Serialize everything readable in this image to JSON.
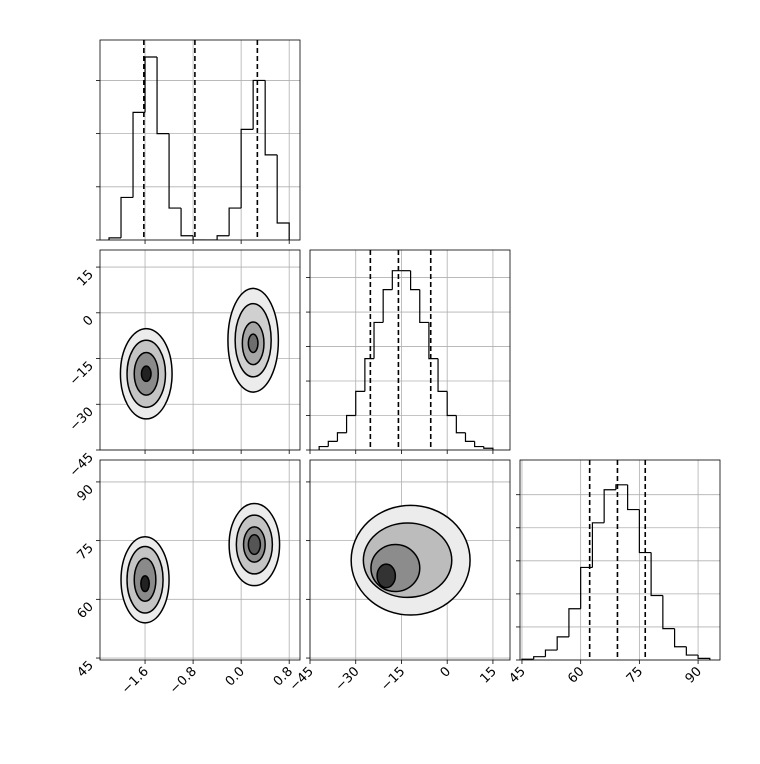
{
  "chart_data": [
    {
      "type": "histogram",
      "bins": [
        -2.2,
        -2.0,
        -1.8,
        -1.6,
        -1.4,
        -1.2,
        -1.0,
        -0.8,
        -0.6,
        -0.4,
        -0.2,
        0,
        0.2,
        0.4,
        0.6,
        0.8
      ],
      "values": [
        0.01,
        0.2,
        0.6,
        0.86,
        0.5,
        0.15,
        0.02,
        0,
        0,
        0.02,
        0.15,
        0.52,
        0.75,
        0.4,
        0.08
      ],
      "quantiles": [
        -1.62,
        -0.77,
        0.27
      ],
      "xlim": [
        -2.35,
        0.98
      ],
      "ylim": [
        0,
        0.94
      ],
      "xticks": [
        -1.6,
        -0.8,
        0,
        0.8
      ],
      "yticks": [
        0,
        0.25,
        0.5,
        0.75
      ],
      "grid": true,
      "color": "#000000",
      "xtick_labels": false,
      "ytick_labels": false
    },
    {
      "type": "contour",
      "xlim": [
        -2.35,
        0.98
      ],
      "ylim": [
        -45,
        20.6
      ],
      "xticks": [
        -1.6,
        -0.8,
        0,
        0.8
      ],
      "yticks": [
        15,
        0,
        {
          "value": -15,
          "label": "−15"
        },
        {
          "value": -30,
          "label": "−30"
        },
        {
          "value": -45,
          "label": "−45"
        }
      ],
      "grid": true,
      "xtick_labels": false,
      "ytick_labels": true,
      "contours": [
        {
          "cx": -1.58,
          "cy": -20,
          "rx": 0.43,
          "ry": 14.8,
          "fill": "#ececec"
        },
        {
          "cx": -1.58,
          "cy": -20,
          "rx": 0.32,
          "ry": 11,
          "fill": "#c4c4c4"
        },
        {
          "cx": -1.58,
          "cy": -20,
          "rx": 0.2,
          "ry": 7,
          "fill": "#8a8a8a"
        },
        {
          "cx": -1.58,
          "cy": -20,
          "rx": 0.08,
          "ry": 2.5,
          "fill": "#222222"
        },
        {
          "cx": 0.2,
          "cy": -9,
          "rx": 0.42,
          "ry": 17,
          "fill": "#ececec"
        },
        {
          "cx": 0.2,
          "cy": -9,
          "rx": 0.3,
          "ry": 12,
          "fill": "#d0d0d0"
        },
        {
          "cx": 0.2,
          "cy": -10,
          "rx": 0.18,
          "ry": 7,
          "fill": "#a6a6a6"
        },
        {
          "cx": 0.2,
          "cy": -10,
          "rx": 0.08,
          "ry": 3,
          "fill": "#6e6e6e"
        }
      ]
    },
    {
      "type": "histogram",
      "bins": [
        -42,
        -39,
        -36,
        -33,
        -30,
        -27,
        -24,
        -21,
        -18,
        -15,
        -12,
        -9,
        -6,
        -3,
        0,
        3,
        6,
        9,
        12,
        15
      ],
      "values": [
        0.02,
        0.05,
        0.1,
        0.2,
        0.34,
        0.53,
        0.74,
        0.93,
        1.04,
        1.04,
        0.93,
        0.74,
        0.53,
        0.34,
        0.2,
        0.1,
        0.05,
        0.02,
        0.01
      ],
      "quantiles": [
        -25.2,
        -16,
        -5.4
      ],
      "xlim": [
        -45,
        20.6
      ],
      "ylim": [
        0,
        1.16
      ],
      "xticks": [
        -45,
        -30,
        -15,
        0,
        15
      ],
      "yticks": [
        0,
        0.2,
        0.4,
        0.6,
        0.8,
        1.0
      ],
      "grid": true,
      "color": "#000000",
      "xtick_labels": false,
      "ytick_labels": false
    },
    {
      "type": "contour",
      "xlim": [
        -2.35,
        0.98
      ],
      "ylim": [
        44.5,
        95.6
      ],
      "xticks": [
        {
          "value": -1.6,
          "label": "−1.6"
        },
        {
          "value": -0.8,
          "label": "−0.8"
        },
        {
          "value": 0,
          "label": "0.0"
        },
        0.8
      ],
      "yticks": [
        45,
        60,
        75,
        90
      ],
      "grid": true,
      "xtick_labels": true,
      "ytick_labels": true,
      "contours": [
        {
          "cx": -1.6,
          "cy": 65,
          "rx": 0.4,
          "ry": 11,
          "fill": "#ececec"
        },
        {
          "cx": -1.6,
          "cy": 65,
          "rx": 0.3,
          "ry": 8.5,
          "fill": "#c4c4c4"
        },
        {
          "cx": -1.6,
          "cy": 65,
          "rx": 0.18,
          "ry": 5.5,
          "fill": "#8a8a8a"
        },
        {
          "cx": -1.6,
          "cy": 64,
          "rx": 0.07,
          "ry": 2,
          "fill": "#222222"
        },
        {
          "cx": 0.22,
          "cy": 74,
          "rx": 0.42,
          "ry": 10.5,
          "fill": "#ececec"
        },
        {
          "cx": 0.22,
          "cy": 74,
          "rx": 0.3,
          "ry": 7.5,
          "fill": "#c4c4c4"
        },
        {
          "cx": 0.22,
          "cy": 74,
          "rx": 0.18,
          "ry": 4.5,
          "fill": "#8a8a8a"
        },
        {
          "cx": 0.22,
          "cy": 74,
          "rx": 0.1,
          "ry": 2.5,
          "fill": "#555555"
        }
      ]
    },
    {
      "type": "contour",
      "xlim": [
        -45,
        20.6
      ],
      "ylim": [
        44.5,
        95.6
      ],
      "xticks": [
        {
          "value": -45,
          "label": "−45"
        },
        {
          "value": -30,
          "label": "−30"
        },
        {
          "value": -15,
          "label": "−15"
        },
        0,
        15
      ],
      "yticks": [
        45,
        60,
        75,
        90
      ],
      "grid": true,
      "xtick_labels": true,
      "ytick_labels": false,
      "contours": [
        {
          "cx": -12,
          "cy": 70,
          "rx": 19.5,
          "ry": 14,
          "fill": "#ececec"
        },
        {
          "cx": -13,
          "cy": 70,
          "rx": 14.5,
          "ry": 9.5,
          "fill": "#bcbcbc"
        },
        {
          "cx": -17,
          "cy": 68,
          "rx": 8,
          "ry": 6,
          "fill": "#8c8c8c"
        },
        {
          "cx": -20,
          "cy": 66,
          "rx": 3,
          "ry": 3,
          "fill": "#333333"
        }
      ]
    },
    {
      "type": "histogram",
      "bins": [
        45,
        48,
        51,
        54,
        57,
        60,
        63,
        66,
        69,
        72,
        75,
        78,
        81,
        84,
        87,
        90,
        93
      ],
      "values": [
        0.005,
        0.02,
        0.06,
        0.14,
        0.31,
        0.56,
        0.83,
        1.03,
        1.06,
        0.91,
        0.65,
        0.39,
        0.19,
        0.08,
        0.03,
        0.01
      ],
      "quantiles": [
        62.3,
        69.4,
        76.5
      ],
      "xlim": [
        44.5,
        95.6
      ],
      "ylim": [
        0,
        1.21
      ],
      "xticks": [
        45,
        60,
        75,
        90
      ],
      "yticks": [
        0,
        0.2,
        0.4,
        0.6,
        0.8,
        1.0
      ],
      "grid": true,
      "color": "#000000",
      "xtick_labels": true,
      "ytick_labels": false
    }
  ]
}
